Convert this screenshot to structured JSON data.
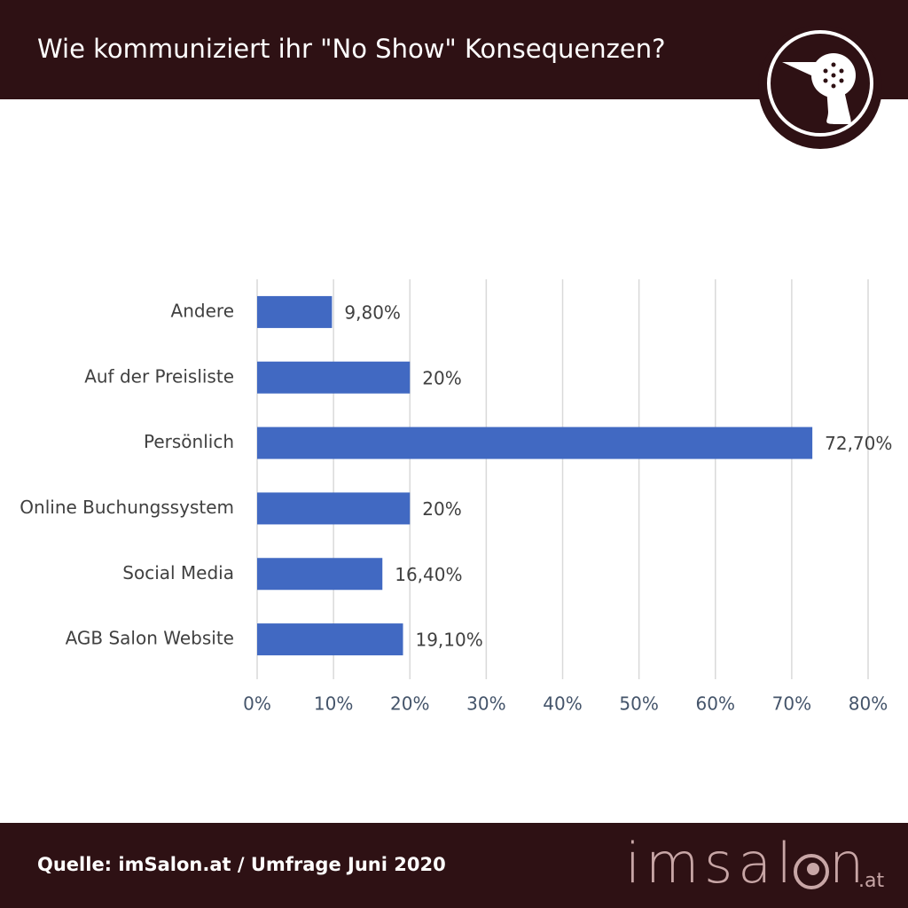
{
  "title": "Wie kommuniziert ihr \"No Show\" Konsequenzen?",
  "source": "Quelle: imSalon.at / Umfrage Juni 2020",
  "logo": {
    "start": "imsal",
    "end": "n",
    "domain": ".at"
  },
  "chart_data": {
    "type": "bar",
    "categories": [
      "Andere",
      "Auf der Preisliste",
      "Persönlich",
      "Online Buchungssystem",
      "Social Media",
      "AGB Salon Website"
    ],
    "values": [
      9.8,
      20,
      72.7,
      20,
      16.4,
      19.1
    ],
    "value_labels": [
      "9,80%",
      "20%",
      "72,70%",
      "20%",
      "16,40%",
      "19,10%"
    ],
    "color": "#4169c2",
    "xlim": [
      0,
      80
    ],
    "xticks": [
      {
        "value": 0,
        "label": "0%"
      },
      {
        "value": 10,
        "label": "10%"
      },
      {
        "value": 20,
        "label": "20%"
      },
      {
        "value": 30,
        "label": "30%"
      },
      {
        "value": 40,
        "label": "40%"
      },
      {
        "value": 50,
        "label": "50%"
      },
      {
        "value": 60,
        "label": "60%"
      },
      {
        "value": 70,
        "label": "70%"
      },
      {
        "value": 80,
        "label": "80%"
      }
    ],
    "grid": true
  }
}
